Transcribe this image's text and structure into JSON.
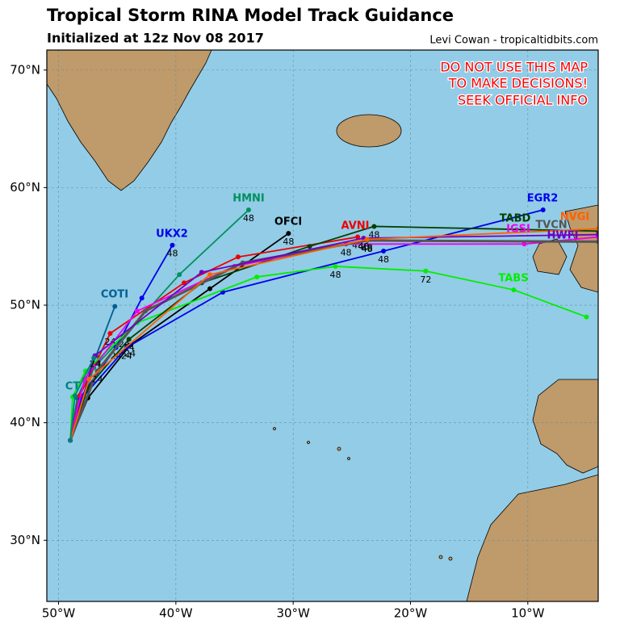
{
  "chart_data": {
    "type": "map",
    "title": "Tropical Storm RINA Model Track Guidance",
    "subtitle": "Initialized at 12z Nov 08 2017",
    "credit": "Levi Cowan - tropicaltidbits.com",
    "annotations": [
      "DO NOT USE THIS MAP",
      "TO MAKE DECISIONS!",
      "SEEK OFFICIAL INFO"
    ],
    "xlim": [
      -51,
      -4
    ],
    "ylim": [
      24.8,
      71.7
    ],
    "xticks": [
      {
        "value": -50,
        "label": "50°W"
      },
      {
        "value": -40,
        "label": "40°W"
      },
      {
        "value": -30,
        "label": "30°W"
      },
      {
        "value": -20,
        "label": "20°W"
      },
      {
        "value": -10,
        "label": "10°W"
      }
    ],
    "yticks": [
      {
        "value": 30,
        "label": "30°N"
      },
      {
        "value": 40,
        "label": "40°N"
      },
      {
        "value": 50,
        "label": "50°N"
      },
      {
        "value": 60,
        "label": "60°N"
      },
      {
        "value": 70,
        "label": "70°N"
      }
    ],
    "grid": true,
    "ocean_color": "#93cce6",
    "land_color": "#bf9a6a",
    "series": [
      {
        "name": "OFCI",
        "color": "#000000",
        "x": [
          -49,
          -47.5,
          -43.9,
          -37.1,
          -30.4
        ],
        "values": [
          38.5,
          42.1,
          46.6,
          51.4,
          56.1
        ],
        "time_labels": [
          null,
          null,
          "24",
          null,
          "48"
        ]
      },
      {
        "name": "HMNI",
        "color": "#009060",
        "x": [
          -49,
          -47.0,
          -44.4,
          -39.7,
          -33.8
        ],
        "values": [
          38.5,
          44.7,
          47.4,
          52.6,
          58.1
        ],
        "time_labels": [
          null,
          null,
          "24",
          null,
          "48"
        ]
      },
      {
        "name": "UKX2",
        "color": "#0000ee",
        "x": [
          -49,
          -48.1,
          -45.1,
          -42.9,
          -40.3
        ],
        "values": [
          38.5,
          42.2,
          46.4,
          50.6,
          55.1
        ],
        "time_labels": [
          null,
          null,
          "24",
          null,
          "48"
        ]
      },
      {
        "name": "COTI",
        "color": "#006090",
        "x": [
          -49,
          -48.4,
          -46.8,
          -45.2
        ],
        "values": [
          38.5,
          42.1,
          45.7,
          49.9
        ],
        "time_labels": [
          null,
          null,
          "24",
          null
        ]
      },
      {
        "name": "AVNI",
        "color": "#ee0000",
        "x": [
          -49,
          -48.2,
          -45.6,
          -39.3,
          -34.7,
          -24.5
        ],
        "values": [
          38.5,
          42.3,
          47.6,
          51.9,
          54.1,
          55.8
        ],
        "time_labels": [
          null,
          null,
          "24",
          null,
          null,
          "48"
        ]
      },
      {
        "name": "EGR2",
        "color": "#0000ee",
        "x": [
          -49,
          -48.1,
          -44.2,
          -36.0,
          -22.3,
          -8.7
        ],
        "values": [
          38.5,
          42.0,
          46.4,
          51.1,
          54.6,
          58.1
        ],
        "time_labels": [
          null,
          null,
          "24",
          null,
          "48",
          null
        ]
      },
      {
        "name": "TABS",
        "color": "#00ee00",
        "x": [
          -49,
          -48.8,
          -47.7,
          -43.3,
          -33.1,
          -26.4,
          -18.7,
          -11.2,
          -5.0
        ],
        "values": [
          38.5,
          42.2,
          44.4,
          48.5,
          52.4,
          53.3,
          52.9,
          51.3,
          49.0
        ],
        "time_labels": [
          null,
          null,
          null,
          null,
          null,
          "48",
          "72",
          null,
          null
        ]
      },
      {
        "name": "TABD",
        "color": "#004000",
        "x": [
          -49,
          -47.5,
          -44.0,
          -37.8,
          -28.6,
          -23.1,
          -4
        ],
        "values": [
          38.5,
          43.0,
          47.1,
          51.9,
          55.0,
          56.7,
          56.3
        ],
        "time_labels": [
          null,
          null,
          "24",
          null,
          null,
          "48",
          null
        ]
      },
      {
        "name": "IGSI",
        "color": "#ee00ee",
        "x": [
          -49,
          -47.8,
          -43.3,
          -35.0,
          -25.5,
          -10.3,
          -4
        ],
        "values": [
          38.5,
          43.7,
          49.5,
          53.3,
          55.2,
          55.2,
          55.8
        ],
        "time_labels": [
          null,
          null,
          null,
          null,
          "48",
          null,
          null
        ]
      },
      {
        "name": "TVCN",
        "color": "#555555",
        "x": [
          -49,
          -46.7,
          -42.6,
          -34.3,
          -23.7,
          -4
        ],
        "values": [
          38.5,
          44.4,
          49.5,
          53.6,
          55.5,
          55.4
        ],
        "time_labels": [
          null,
          "24",
          null,
          null,
          "48",
          null
        ]
      },
      {
        "name": "HWFI",
        "color": "#7000c0",
        "x": [
          -49,
          -46.9,
          -37.8,
          -24.0,
          -4
        ],
        "values": [
          38.5,
          45.7,
          52.8,
          55.7,
          56.0
        ],
        "time_labels": [
          null,
          "24",
          null,
          "48",
          null
        ]
      },
      {
        "name": "NVGI",
        "color": "#ff6000",
        "x": [
          -49,
          -47.4,
          -37.1,
          -23.7,
          -4
        ],
        "values": [
          38.5,
          43.7,
          52.6,
          55.6,
          56.5
        ],
        "time_labels": [
          null,
          null,
          null,
          "48",
          null
        ]
      },
      {
        "name": "CT",
        "color": "#008080",
        "x": [
          -49,
          -48.6,
          -47.0
        ],
        "values": [
          38.5,
          42.3,
          45.5
        ],
        "time_labels": [
          null,
          null,
          null
        ]
      }
    ]
  }
}
